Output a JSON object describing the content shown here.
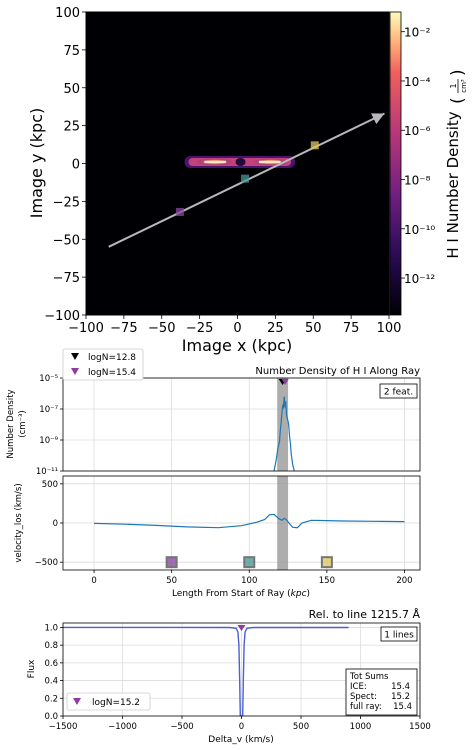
{
  "chart_data": [
    {
      "type": "heatmap",
      "title": "",
      "xlabel": "Image x  (kpc)",
      "ylabel": "Image y  (kpc)",
      "xlim": [
        -100,
        100
      ],
      "ylim": [
        -100,
        100
      ],
      "xticks": [
        "−100",
        "−75",
        "−50",
        "−25",
        "0",
        "25",
        "50",
        "75",
        "100"
      ],
      "yticks": [
        "100",
        "75",
        "50",
        "25",
        "0",
        "−25",
        "−50",
        "−75",
        "−100"
      ],
      "colorbar": {
        "label": "H I Number Density",
        "unit_num": "1",
        "unit_den": "cm³",
        "ticks": [
          "10⁻²",
          "10⁻⁴",
          "10⁻⁶",
          "10⁻⁸",
          "10⁻¹⁰",
          "10⁻¹²"
        ],
        "tick_values": [
          -2,
          -4,
          -6,
          -8,
          -10,
          -12
        ],
        "range": [
          -13.5,
          -1.2
        ]
      },
      "ray": {
        "start": [
          -85,
          -55
        ],
        "end": [
          97,
          33
        ]
      },
      "features": [
        {
          "x": 51,
          "y": 12,
          "color": "#e0c860"
        },
        {
          "x": 5,
          "y": -10,
          "color": "#4a9a9a"
        },
        {
          "x": -38,
          "y": -32,
          "color": "#8a4aa0"
        }
      ],
      "disk": {
        "x_range": [
          -35,
          38
        ],
        "y_center": 1
      }
    },
    {
      "type": "line",
      "title": "Number Density of H I Along Ray",
      "ylabel_top": "Number Density",
      "ylabel_unit": "(cm⁻³)",
      "yticks": [
        "10⁻⁵",
        "10⁻⁷",
        "10⁻⁹",
        "10⁻¹¹"
      ],
      "ylim_log": [
        -11,
        -5
      ],
      "feature_count_label": "2 feat.",
      "legend": [
        {
          "label": "logN=12.8",
          "color": "#000000"
        },
        {
          "label": "logN=15.4",
          "color": "#8e3aa0"
        }
      ],
      "x": [
        116,
        117.5,
        118.5,
        119.5,
        120,
        120.5,
        121,
        121.5,
        122,
        122.5,
        123,
        123.5,
        124,
        124.5,
        125,
        125.5,
        126,
        126.5,
        127,
        128,
        129
      ],
      "log_density": [
        -11,
        -10.2,
        -9.5,
        -9.1,
        -8.4,
        -7.9,
        -7.3,
        -6.8,
        -6.9,
        -6.2,
        -6.9,
        -6.5,
        -7.4,
        -7.6,
        -7.8,
        -8.1,
        -8.8,
        -9.2,
        -9.9,
        -10.6,
        -11
      ]
    },
    {
      "type": "line",
      "ylabel": "velocity_los (km/s)",
      "xlabel": "Length From Start of Ray (kpc)",
      "xlim": [
        -20,
        210
      ],
      "ylim": [
        -600,
        600
      ],
      "yticks": [
        "500",
        "0",
        "−500"
      ],
      "xticks": [
        "0",
        "50",
        "100",
        "150",
        "200"
      ],
      "x": [
        0,
        20,
        40,
        60,
        80,
        95,
        105,
        110,
        113,
        116,
        119,
        121,
        122.5,
        124,
        126,
        128,
        131,
        134,
        140,
        150,
        160,
        180,
        200
      ],
      "velocity": [
        -5,
        -15,
        -30,
        -50,
        -60,
        -35,
        10,
        45,
        105,
        110,
        55,
        35,
        60,
        40,
        -10,
        -55,
        -60,
        0,
        35,
        30,
        25,
        22,
        18
      ],
      "shaded_x": [
        118,
        125
      ],
      "markers": [
        {
          "x": 50,
          "color": "#8a4aa0"
        },
        {
          "x": 100,
          "color": "#4a9a9a"
        },
        {
          "x": 150,
          "color": "#e0c860"
        }
      ]
    },
    {
      "type": "line",
      "title": "Rel. to line 1215.7 Å",
      "xlabel": "Delta_v (km/s)",
      "ylabel": "Flux",
      "xlim": [
        -1500,
        1500
      ],
      "ylim": [
        0,
        1.05
      ],
      "xticks": [
        "−1500",
        "−1000",
        "−500",
        "0",
        "500",
        "1000",
        "1500"
      ],
      "yticks": [
        "1.0",
        "0.8",
        "0.6",
        "0.4",
        "0.2",
        "0.0"
      ],
      "lines_label": "1 lines",
      "legend": [
        {
          "label": "logN=15.2",
          "color": "#8e3aa0"
        }
      ],
      "sums": {
        "title": "Tot Sums",
        "rows": [
          {
            "label": "ICE:",
            "value": "15.4"
          },
          {
            "label": "Spect:",
            "value": "15.2"
          },
          {
            "label": "full ray:",
            "value": "15.4"
          }
        ]
      },
      "dv": [
        -1500,
        -600,
        -100,
        -45,
        -30,
        -22,
        -15,
        -10,
        10,
        15,
        22,
        30,
        45,
        100,
        900
      ],
      "flux": [
        1.0,
        1.0,
        0.999,
        0.99,
        0.95,
        0.8,
        0.4,
        0.0,
        0.0,
        0.4,
        0.8,
        0.95,
        0.99,
        0.999,
        0.999
      ]
    }
  ]
}
